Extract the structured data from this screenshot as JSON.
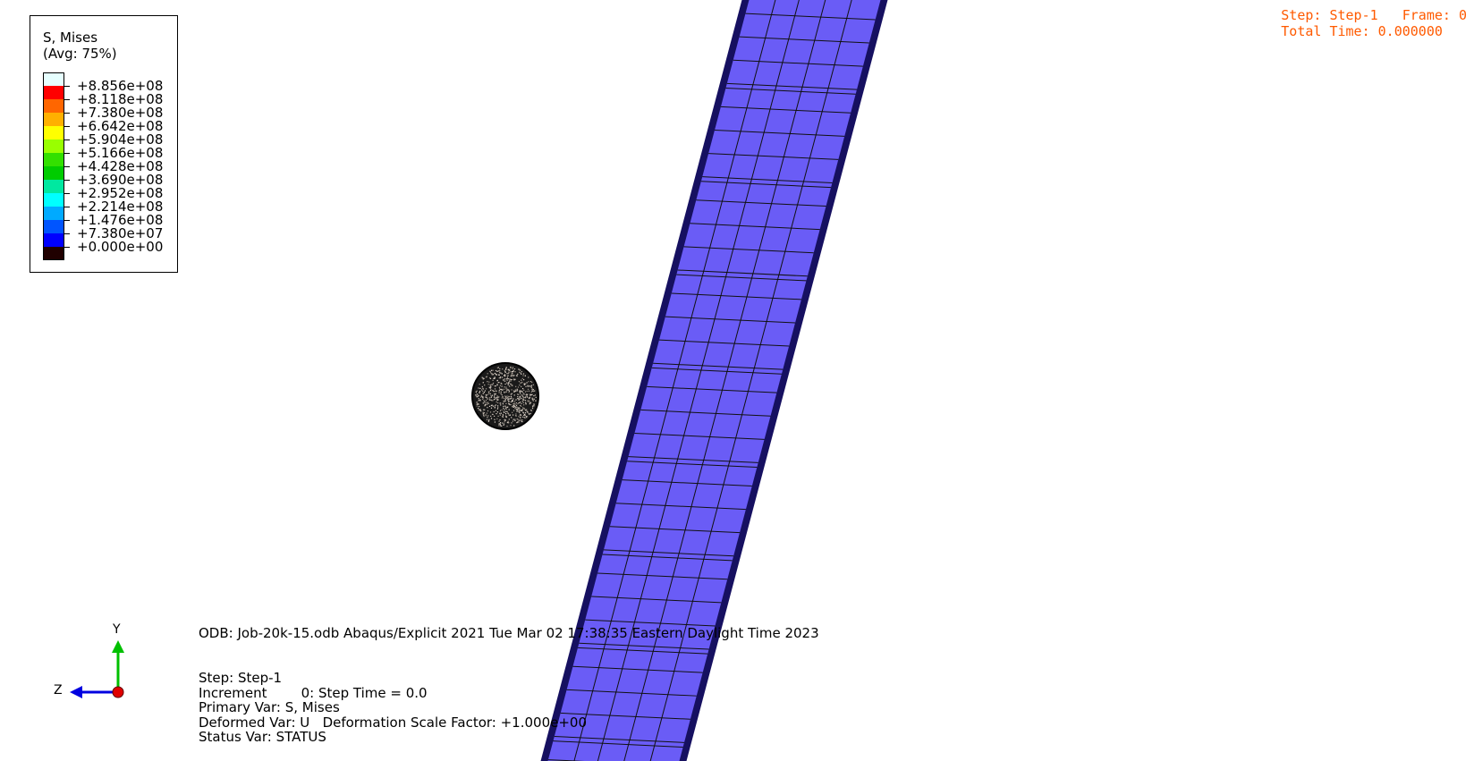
{
  "legend": {
    "title": "S, Mises",
    "subtitle": "(Avg: 75%)",
    "values": [
      "+8.856e+08",
      "+8.118e+08",
      "+7.380e+08",
      "+6.642e+08",
      "+5.904e+08",
      "+5.166e+08",
      "+4.428e+08",
      "+3.690e+08",
      "+2.952e+08",
      "+2.214e+08",
      "+1.476e+08",
      "+7.380e+07",
      "+0.000e+00"
    ],
    "colors": [
      "#e6ffff",
      "#ff0000",
      "#ff6600",
      "#ffb000",
      "#ffff00",
      "#99ff00",
      "#33e000",
      "#00cc00",
      "#00e8a0",
      "#00ffff",
      "#00aaff",
      "#0055ff",
      "#0000ff",
      "#200000"
    ]
  },
  "step_info": {
    "line1": "Step: Step-1   Frame: 0",
    "line2": "Total Time: 0.000000"
  },
  "odb": {
    "line": "ODB: Job-20k-15.odb    Abaqus/Explicit 2021    Tue Mar 02 17:38:35 Eastern Daylight Time 2023",
    "step": "Step: Step-1",
    "increment": "Increment        0: Step Time = 0.0",
    "primary_var": "Primary Var: S, Mises",
    "deformed_var": "Deformed Var: U   Deformation Scale Factor: +1.000e+00",
    "status_var": "Status Var: STATUS"
  },
  "triad": {
    "y_label": "Y",
    "z_label": "Z"
  },
  "colors": {
    "plate_fill": "#6a5cf6",
    "plate_border": "#161060",
    "annotation": "#ff5a00"
  }
}
